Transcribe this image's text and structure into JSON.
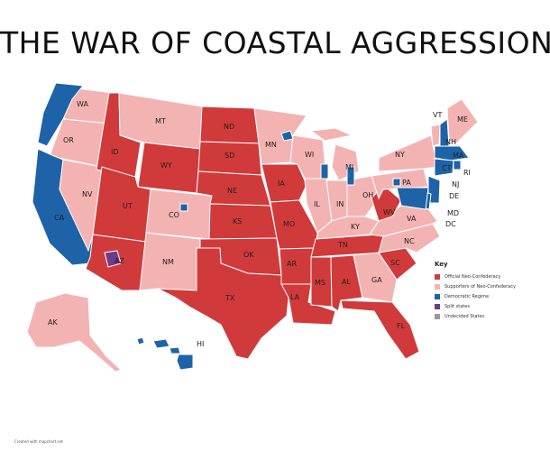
{
  "title": "THE WAR OF COASTAL AGGRESSION",
  "colors": {
    "official": "#d13a3a",
    "supporter": "#f4b3b3",
    "democratic": "#1e63a8",
    "split": "#6e3a8a",
    "undecided": "#9a9a9a",
    "border": "#ffffff"
  },
  "states": {
    "WA": "WA",
    "OR": "OR",
    "CA": "CA",
    "ID": "ID",
    "NV": "NV",
    "MT": "MT",
    "WY": "WY",
    "UT": "UT",
    "AZ": "AZ",
    "CO": "CO",
    "NM": "NM",
    "ND": "ND",
    "SD": "SD",
    "NE": "NE",
    "KS": "KS",
    "OK": "OK",
    "TX": "TX",
    "MN": "MN",
    "IA": "IA",
    "MO": "MO",
    "AR": "AR",
    "LA": "LA",
    "WI": "WI",
    "IL": "IL",
    "MI": "MI",
    "IN": "IN",
    "OH": "OH",
    "KY": "KY",
    "TN": "TN",
    "MS": "MS",
    "AL": "AL",
    "GA": "GA",
    "FL": "FL",
    "SC": "SC",
    "NC": "NC",
    "VA": "VA",
    "WV": "WV",
    "PA": "PA",
    "NY": "NY",
    "VT": "VT",
    "NH": "NH",
    "ME": "ME",
    "MA": "MA",
    "RI": "RI",
    "CT": "CT",
    "NJ": "NJ",
    "DE": "DE",
    "MD": "MD",
    "DC": "DC",
    "AK": "AK",
    "HI": "HI"
  },
  "key": {
    "title": "Key",
    "items": [
      {
        "label": "Official Neo-Confederacy",
        "color": "#d13a3a"
      },
      {
        "label": "Supporters of Neo-Confederacy",
        "color": "#f4b3b3"
      },
      {
        "label": "Democratic Regime",
        "color": "#1e63a8"
      },
      {
        "label": "Split states",
        "color": "#6e3a8a"
      },
      {
        "label": "Undecided States",
        "color": "#9a9a9a"
      }
    ]
  },
  "credit": "Created with mapchart.net"
}
